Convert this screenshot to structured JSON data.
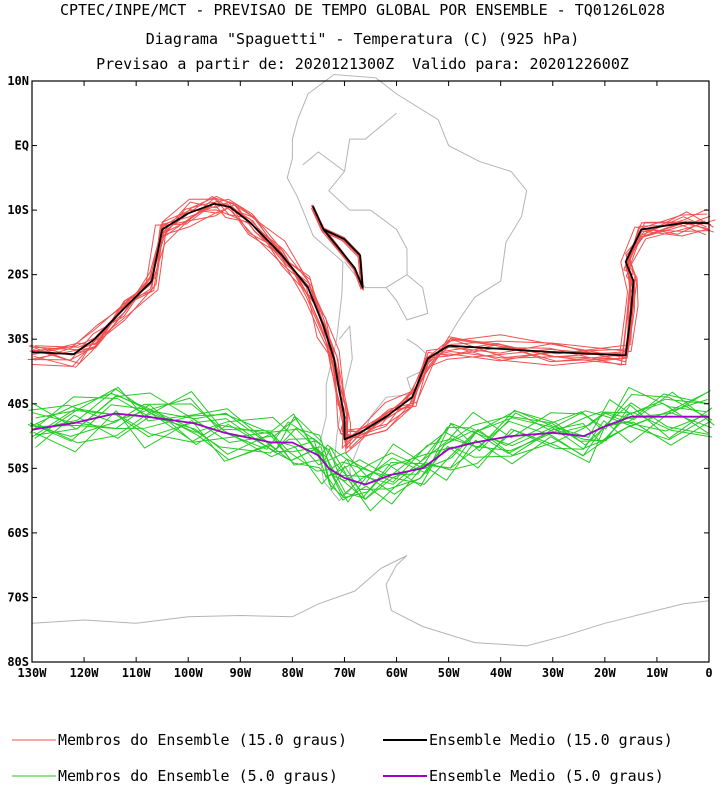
{
  "title": {
    "line1": "CPTEC/INPE/MCT - PREVISAO DE TEMPO GLOBAL POR ENSEMBLE - TQ0126L028",
    "line2": "Diagrama \"Spaguetti\" - Temperatura (C) (925 hPa)",
    "line3": "Previsao a partir de: 2020121300Z  Valido para: 2020122600Z"
  },
  "axes": {
    "lat_labels": [
      "10N",
      "EQ",
      "10S",
      "20S",
      "30S",
      "40S",
      "50S",
      "60S",
      "70S",
      "80S"
    ],
    "lon_labels": [
      "130W",
      "120W",
      "110W",
      "100W",
      "90W",
      "80W",
      "70W",
      "60W",
      "50W",
      "40W",
      "30W",
      "20W",
      "10W",
      "0"
    ],
    "lat_range": [
      -80,
      10
    ],
    "lon_range": [
      -130,
      0
    ]
  },
  "colors": {
    "members_15": "#f05050",
    "mean_15": "#000000",
    "members_5": "#22cc22",
    "mean_5": "#a000c8",
    "coast": "#b4b4b4"
  },
  "legend": [
    {
      "label": "Membros do Ensemble (15.0 graus)",
      "color": "#f05050"
    },
    {
      "label": "Ensemble Medio (15.0 graus)",
      "color": "#000000"
    },
    {
      "label": "Membros do Ensemble (5.0 graus)",
      "color": "#22cc22"
    },
    {
      "label": "Ensemble Medio (5.0 graus)",
      "color": "#a000c8"
    }
  ],
  "chart_data": {
    "type": "line",
    "series": [
      {
        "name": "Ensemble Medio (15.0 graus)",
        "coords": [
          [
            -130,
            -32
          ],
          [
            -122,
            -32.3
          ],
          [
            -118,
            -30
          ],
          [
            -112,
            -25
          ],
          [
            -107,
            -21
          ],
          [
            -105,
            -13
          ],
          [
            -100,
            -10.5
          ],
          [
            -95,
            -9
          ],
          [
            -92,
            -9.5
          ],
          [
            -88,
            -12
          ],
          [
            -82,
            -17
          ],
          [
            -77,
            -22
          ],
          [
            -74,
            -28
          ],
          [
            -72,
            -33
          ],
          [
            -71,
            -38
          ],
          [
            -70,
            -42
          ],
          [
            -70,
            -45.5
          ],
          [
            -67,
            -44.5
          ],
          [
            -62,
            -42
          ],
          [
            -57,
            -39
          ],
          [
            -54,
            -33
          ],
          [
            -50,
            -31
          ],
          [
            -40,
            -31.5
          ],
          [
            -30,
            -32
          ],
          [
            -16,
            -32.5
          ],
          [
            -15,
            -26
          ],
          [
            -14.5,
            -21
          ],
          [
            -16,
            -18
          ],
          [
            -13,
            -13
          ],
          [
            -5,
            -12
          ],
          [
            0,
            -12
          ]
        ]
      },
      {
        "name": "Ensemble Medio (15.0 graus)",
        "coords": [
          [
            -76,
            -9.5
          ],
          [
            -74,
            -13
          ],
          [
            -70,
            -14.5
          ],
          [
            -67,
            -17
          ],
          [
            -66.5,
            -22
          ],
          [
            -68,
            -19
          ],
          [
            -71,
            -16
          ],
          [
            -74,
            -13
          ],
          [
            -76,
            -9.5
          ]
        ]
      },
      {
        "name": "Ensemble Medio (5.0 graus)",
        "coords": [
          [
            -130,
            -44
          ],
          [
            -122,
            -43
          ],
          [
            -114,
            -41.5
          ],
          [
            -108,
            -42
          ],
          [
            -99,
            -43
          ],
          [
            -93,
            -44.5
          ],
          [
            -84,
            -46
          ],
          [
            -80,
            -46
          ],
          [
            -75,
            -48
          ],
          [
            -73,
            -50
          ],
          [
            -70,
            -51.5
          ],
          [
            -66,
            -52.5
          ],
          [
            -61,
            -51
          ],
          [
            -55,
            -50
          ],
          [
            -50,
            -47
          ],
          [
            -45,
            -46
          ],
          [
            -38,
            -45
          ],
          [
            -30,
            -44.5
          ],
          [
            -24,
            -45
          ],
          [
            -20,
            -43.5
          ],
          [
            -15,
            -42
          ],
          [
            -8,
            -42
          ],
          [
            0,
            -42
          ]
        ]
      }
    ]
  }
}
